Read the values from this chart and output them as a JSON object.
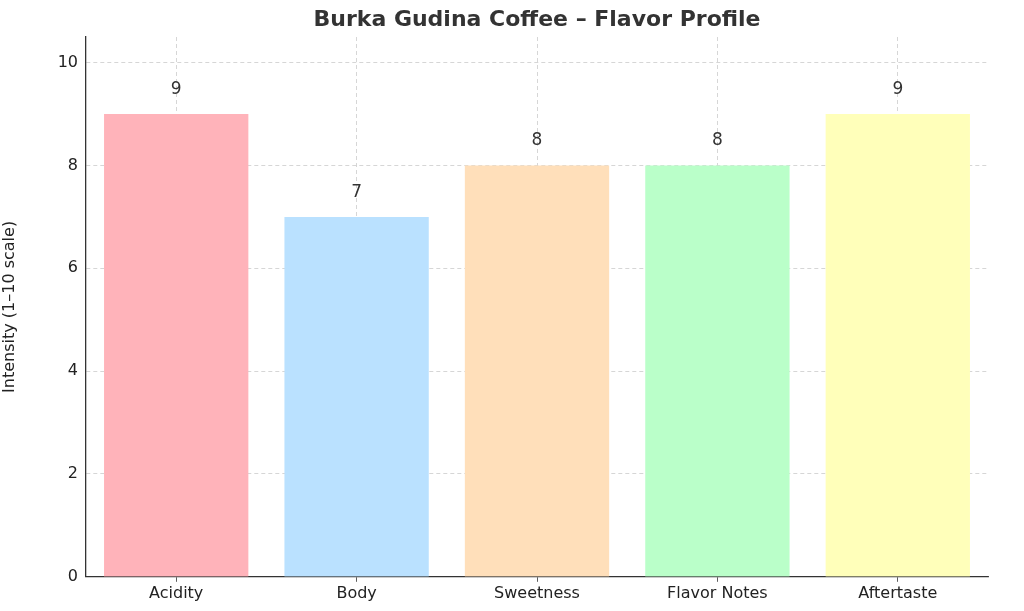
{
  "chart_data": {
    "type": "bar",
    "title": "Burka Gudina Coffee – Flavor Profile",
    "ylabel": "Intensity (1–10 scale)",
    "categories": [
      "Acidity",
      "Body",
      "Sweetness",
      "Flavor Notes",
      "Aftertaste"
    ],
    "values": [
      9,
      7,
      8,
      8,
      9
    ],
    "colors": [
      "#ffb3ba",
      "#bae1ff",
      "#ffdfba",
      "#baffc9",
      "#ffffba"
    ],
    "ylim": [
      0,
      10.5
    ],
    "yticks": [
      0,
      2,
      4,
      6,
      8,
      10
    ],
    "grid": true,
    "data_labels": true
  }
}
